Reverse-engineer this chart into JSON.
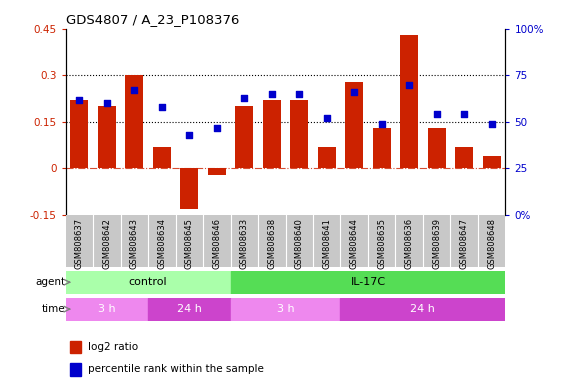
{
  "title": "GDS4807 / A_23_P108376",
  "samples": [
    "GSM808637",
    "GSM808642",
    "GSM808643",
    "GSM808634",
    "GSM808645",
    "GSM808646",
    "GSM808633",
    "GSM808638",
    "GSM808640",
    "GSM808641",
    "GSM808644",
    "GSM808635",
    "GSM808636",
    "GSM808639",
    "GSM808647",
    "GSM808648"
  ],
  "log2_ratio": [
    0.22,
    0.2,
    0.3,
    0.07,
    -0.13,
    -0.02,
    0.2,
    0.22,
    0.22,
    0.07,
    0.28,
    0.13,
    0.43,
    0.13,
    0.07,
    0.04
  ],
  "percentile": [
    62,
    60,
    67,
    58,
    43,
    47,
    63,
    65,
    65,
    52,
    66,
    49,
    70,
    54,
    54,
    49
  ],
  "ylim_left": [
    -0.15,
    0.45
  ],
  "ylim_right": [
    0,
    100
  ],
  "hline1": 0.3,
  "hline2": 0.15,
  "bar_color": "#cc2200",
  "dot_color": "#0000cc",
  "agent_groups": [
    {
      "label": "control",
      "start": 0,
      "end": 5,
      "color": "#aaffaa"
    },
    {
      "label": "IL-17C",
      "start": 6,
      "end": 15,
      "color": "#55dd55"
    }
  ],
  "time_groups": [
    {
      "label": "3 h",
      "start": 0,
      "end": 2,
      "color": "#ee88ee"
    },
    {
      "label": "24 h",
      "start": 3,
      "end": 5,
      "color": "#cc44cc"
    },
    {
      "label": "3 h",
      "start": 6,
      "end": 9,
      "color": "#ee88ee"
    },
    {
      "label": "24 h",
      "start": 10,
      "end": 15,
      "color": "#cc44cc"
    }
  ],
  "legend_red": "log2 ratio",
  "legend_blue": "percentile rank within the sample",
  "label_agent": "agent",
  "label_time": "time",
  "yticks_left": [
    -0.15,
    0,
    0.15,
    0.3,
    0.45
  ],
  "yticks_right": [
    0,
    25,
    50,
    75,
    100
  ],
  "ytick_right_labels": [
    "0%",
    "25",
    "50",
    "75",
    "100%"
  ]
}
